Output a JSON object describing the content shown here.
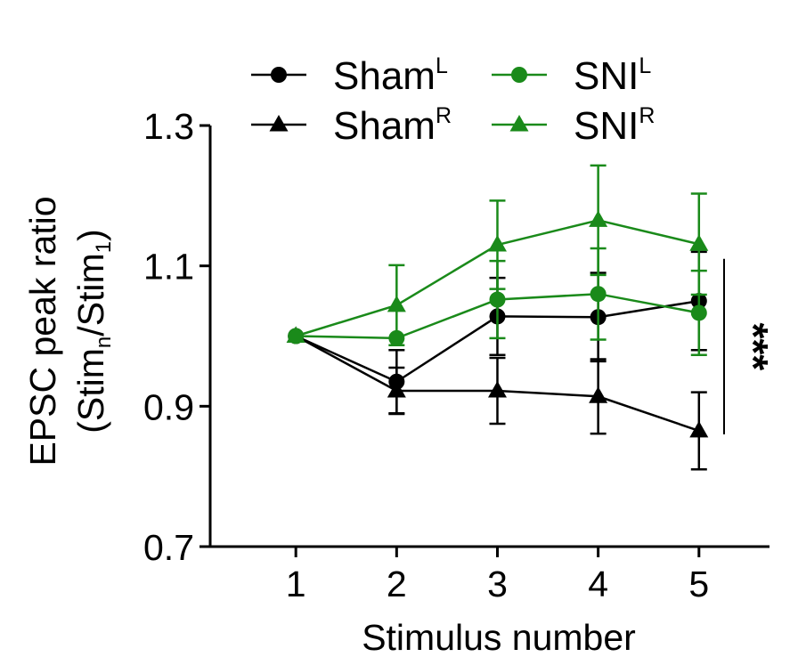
{
  "chart_data": {
    "type": "line",
    "x": [
      1,
      2,
      3,
      4,
      5
    ],
    "xlabel": "Stimulus number",
    "ylabel": "EPSC peak ratio",
    "ylabel_sub": "(Stimn/Stim1)",
    "ylabel_sub_parts": {
      "open": "(Stim",
      "n": "n",
      "slash": "/Stim",
      "one": "1",
      "close": ")"
    },
    "xlim": [
      0.15,
      5.7
    ],
    "ylim": [
      0.7,
      1.3
    ],
    "xticks": [
      "1",
      "2",
      "3",
      "4",
      "5"
    ],
    "yticks": [
      "0.7",
      "0.9",
      "1.1",
      "1.3"
    ],
    "legend_placement": "top",
    "grid": false,
    "series": [
      {
        "key": "shamL",
        "name": "ShamL",
        "base": "Sham",
        "sup": "L",
        "marker": "circle",
        "color": "#000000",
        "values": [
          1.0,
          0.935,
          1.028,
          1.027,
          1.05
        ],
        "errors": [
          0.0,
          0.045,
          0.055,
          0.063,
          0.07
        ]
      },
      {
        "key": "shamR",
        "name": "ShamR",
        "base": "Sham",
        "sup": "R",
        "marker": "triangle",
        "color": "#000000",
        "values": [
          1.0,
          0.922,
          0.922,
          0.914,
          0.865
        ],
        "errors": [
          0.0,
          0.033,
          0.047,
          0.053,
          0.055
        ]
      },
      {
        "key": "sniL",
        "name": "SNIL",
        "base": "SNI",
        "sup": "L",
        "marker": "circle",
        "color": "#1a8a1a",
        "values": [
          1.0,
          0.997,
          1.052,
          1.06,
          1.033
        ],
        "errors": [
          0.0,
          0.0,
          0.055,
          0.065,
          0.06
        ]
      },
      {
        "key": "sniR",
        "name": "SNIR",
        "base": "SNI",
        "sup": "R",
        "marker": "triangle",
        "color": "#1a8a1a",
        "values": [
          1.0,
          1.044,
          1.13,
          1.165,
          1.131
        ],
        "errors": [
          0.0,
          0.057,
          0.063,
          0.078,
          0.072
        ]
      }
    ],
    "annotation": {
      "text": "***",
      "y_range": [
        0.86,
        1.11
      ]
    }
  }
}
